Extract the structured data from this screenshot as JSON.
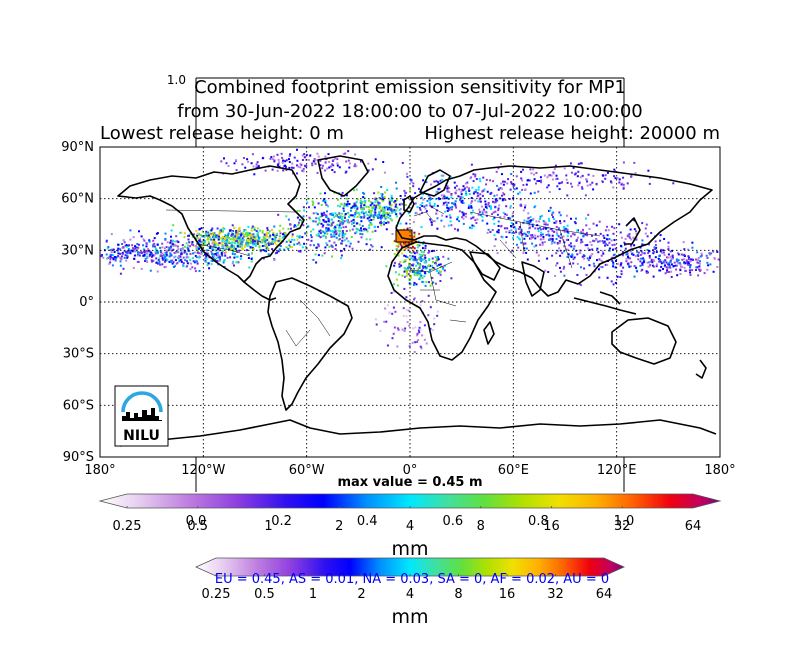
{
  "title": {
    "line1": "Combined footprint emission sensitivity for MP1",
    "line2": "from 30-Jun-2022 18:00:00 to 07-Jul-2022 10:00:00",
    "line3_left": "Lowest release height: 0 m",
    "line3_right": "Highest release height: 20000 m",
    "ghost_label": "1.0"
  },
  "map": {
    "lat_ticks": [
      "90°N",
      "60°N",
      "30°N",
      "0°",
      "30°S",
      "60°S",
      "90°S"
    ],
    "lon_ticks": [
      "180°",
      "120°W",
      "60°W",
      "0°",
      "60°E",
      "120°E",
      "180°"
    ],
    "logo_text": "NILU",
    "logo_icon": "nilu-skyline-logo"
  },
  "max_value": "max value = 0.45 m",
  "colorbar_main": {
    "ticks": [
      "0.25",
      "0.5",
      "1",
      "2",
      "4",
      "8",
      "16",
      "32",
      "64"
    ],
    "ghost_ticks": [
      "0.0",
      "0.2",
      "0.4",
      "0.6",
      "0.8",
      "1.0"
    ],
    "unit": "mm"
  },
  "colorbar_second": {
    "ticks": [
      "0.25",
      "0.5",
      "1",
      "2",
      "4",
      "8",
      "16",
      "32",
      "64"
    ],
    "unit": "mm"
  },
  "region_summary": "EU = 0.45,  AS = 0.01,  NA = 0.03,  SA = 0,  AF = 0.02,  AU = 0",
  "colors": {
    "summary_text": "#0000ff",
    "colormap": [
      "#ffffff",
      "#e0c8f0",
      "#c080e0",
      "#9040e0",
      "#5020f0",
      "#0000ff",
      "#0080ff",
      "#00e0ff",
      "#40e0a0",
      "#60e040",
      "#a0e000",
      "#e0e000",
      "#ffc000",
      "#ff8000",
      "#ff3000",
      "#e00020",
      "#c00060",
      "#800080"
    ]
  }
}
